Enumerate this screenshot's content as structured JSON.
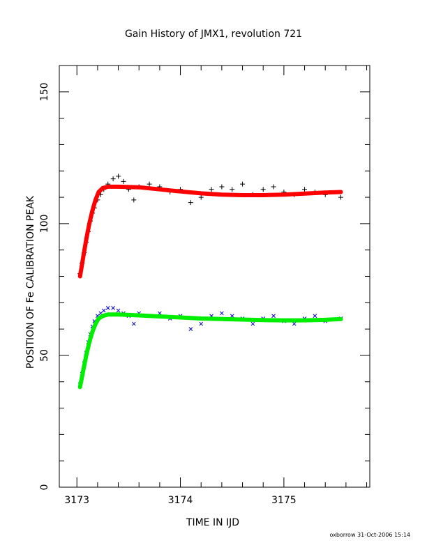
{
  "chart_data": {
    "type": "scatter",
    "title": "Gain History of JMX1, revolution 721",
    "xlabel": "TIME IN IJD",
    "ylabel": "POSITION OF Fe CALIBRATION PEAK",
    "xlim": [
      3172.83,
      3175.83
    ],
    "ylim": [
      0,
      160
    ],
    "xticks": [
      3173,
      3174,
      3175
    ],
    "xtick_labels": [
      "3173",
      "3174",
      "3175"
    ],
    "yticks": [
      0,
      50,
      100,
      150
    ],
    "ytick_labels": [
      "0",
      "50",
      "100",
      "150"
    ],
    "grid": false,
    "legend": "none",
    "series": [
      {
        "marker": "plus",
        "color": "#000000",
        "x": [
          3173.03,
          3173.05,
          3173.07,
          3173.09,
          3173.11,
          3173.13,
          3173.15,
          3173.17,
          3173.2,
          3173.23,
          3173.26,
          3173.3,
          3173.35,
          3173.4,
          3173.45,
          3173.5,
          3173.55,
          3173.6,
          3173.7,
          3173.8,
          3173.9,
          3174.0,
          3174.1,
          3174.2,
          3174.3,
          3174.4,
          3174.5,
          3174.6,
          3174.7,
          3174.8,
          3174.9,
          3175.0,
          3175.1,
          3175.2,
          3175.3,
          3175.4,
          3175.55
        ],
        "y": [
          81,
          85,
          89,
          93,
          97,
          101,
          104,
          106,
          109,
          111,
          113,
          115,
          117,
          118,
          116,
          113,
          109,
          114,
          115,
          114,
          112,
          113,
          108,
          110,
          113,
          114,
          113,
          115,
          111,
          113,
          114,
          112,
          111,
          113,
          112,
          111,
          110
        ]
      },
      {
        "marker": "x",
        "color": "#0000cc",
        "x": [
          3173.03,
          3173.05,
          3173.07,
          3173.09,
          3173.11,
          3173.13,
          3173.15,
          3173.17,
          3173.2,
          3173.23,
          3173.26,
          3173.3,
          3173.35,
          3173.4,
          3173.45,
          3173.5,
          3173.55,
          3173.6,
          3173.7,
          3173.8,
          3173.9,
          3174.0,
          3174.1,
          3174.2,
          3174.3,
          3174.4,
          3174.5,
          3174.6,
          3174.7,
          3174.8,
          3174.9,
          3175.0,
          3175.1,
          3175.2,
          3175.3,
          3175.4,
          3175.55
        ],
        "y": [
          39,
          43,
          47,
          51,
          55,
          58,
          61,
          63,
          65,
          66,
          67,
          68,
          68,
          67,
          66,
          65,
          62,
          66,
          65,
          66,
          64,
          65,
          60,
          62,
          65,
          66,
          65,
          64,
          62,
          64,
          65,
          63,
          62,
          64,
          65,
          63,
          64
        ]
      },
      {
        "marker": "line",
        "color": "#ff0000",
        "x": [
          3173.03,
          3173.06,
          3173.09,
          3173.12,
          3173.15,
          3173.18,
          3173.21,
          3173.25,
          3173.3,
          3173.4,
          3173.6,
          3173.8,
          3174.0,
          3174.2,
          3174.4,
          3174.6,
          3174.8,
          3175.0,
          3175.2,
          3175.4,
          3175.55
        ],
        "y": [
          80,
          87,
          94,
          100,
          105,
          109,
          112,
          113.5,
          114,
          114,
          113.8,
          113,
          112.2,
          111.5,
          111,
          110.8,
          110.8,
          111,
          111.4,
          111.8,
          112
        ]
      },
      {
        "marker": "line",
        "color": "#00ee00",
        "x": [
          3173.03,
          3173.06,
          3173.09,
          3173.12,
          3173.15,
          3173.18,
          3173.21,
          3173.25,
          3173.3,
          3173.4,
          3173.6,
          3173.8,
          3174.0,
          3174.2,
          3174.4,
          3174.6,
          3174.8,
          3175.0,
          3175.2,
          3175.4,
          3175.55
        ],
        "y": [
          38,
          44,
          50,
          55,
          59,
          62,
          64,
          65,
          65.5,
          65.5,
          65.2,
          64.8,
          64.4,
          64,
          63.8,
          63.6,
          63.4,
          63.3,
          63.3,
          63.5,
          63.8
        ]
      }
    ],
    "footer": "oxborrow 31-Oct-2006 15:14"
  }
}
